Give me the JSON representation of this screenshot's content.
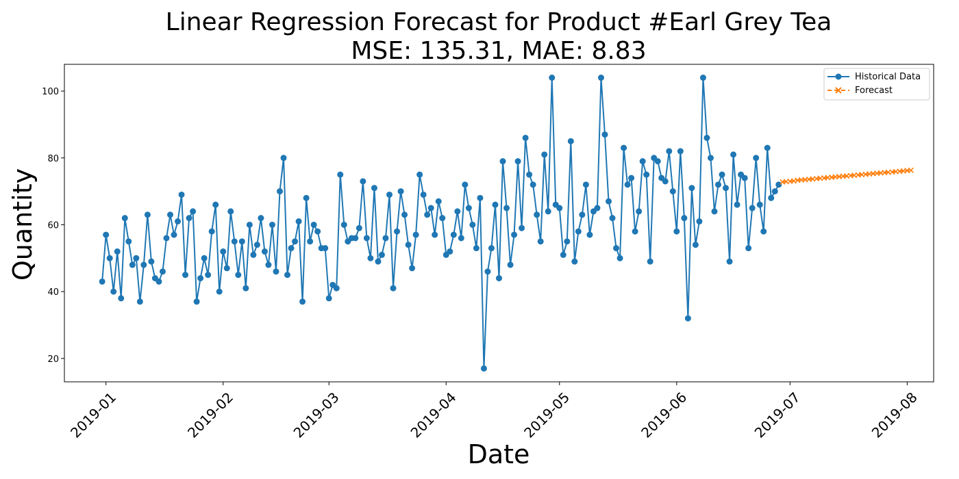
{
  "chart_data": {
    "type": "line",
    "title": "Linear Regression Forecast for Product #Earl Grey Tea",
    "subtitle": "MSE: 135.31, MAE: 8.83",
    "xlabel": "Date",
    "ylabel": "Quantity",
    "xlim": [
      "2018-12-21",
      "2019-08-08"
    ],
    "ylim": [
      13,
      108
    ],
    "x_ticks": [
      "2019-01",
      "2019-02",
      "2019-03",
      "2019-04",
      "2019-05",
      "2019-06",
      "2019-07",
      "2019-08"
    ],
    "y_ticks": [
      20,
      40,
      60,
      80,
      100
    ],
    "grid": false,
    "legend_position": "top-right",
    "series": [
      {
        "name": "Historical Data",
        "color": "#1f77b4",
        "marker": "circle",
        "start_date": "2018-12-31",
        "interval_days": 1,
        "values": [
          43,
          57,
          50,
          40,
          52,
          38,
          62,
          55,
          48,
          50,
          37,
          48,
          63,
          49,
          44,
          43,
          46,
          56,
          63,
          57,
          61,
          69,
          45,
          62,
          64,
          37,
          44,
          50,
          45,
          58,
          66,
          40,
          52,
          47,
          64,
          55,
          45,
          55,
          41,
          60,
          51,
          54,
          62,
          52,
          48,
          60,
          46,
          70,
          80,
          45,
          53,
          55,
          61,
          37,
          68,
          55,
          60,
          58,
          53,
          53,
          38,
          42,
          41,
          75,
          60,
          55,
          56,
          56,
          59,
          73,
          56,
          50,
          71,
          49,
          51,
          56,
          69,
          41,
          58,
          70,
          63,
          54,
          47,
          57,
          75,
          69,
          63,
          65,
          57,
          67,
          62,
          51,
          52,
          57,
          64,
          56,
          72,
          65,
          60,
          53,
          68,
          17,
          46,
          53,
          66,
          44,
          79,
          65,
          48,
          57,
          79,
          59,
          86,
          75,
          72,
          63,
          55,
          81,
          64,
          104,
          66,
          65,
          51,
          55,
          85,
          49,
          58,
          63,
          72,
          57,
          64,
          65,
          104,
          87,
          67,
          62,
          53,
          50,
          83,
          72,
          74,
          58,
          64,
          79,
          75,
          49,
          80,
          79,
          74,
          73,
          82,
          70,
          58,
          82,
          62,
          32,
          71,
          54,
          61,
          104,
          86,
          80,
          64,
          72,
          75,
          71,
          49,
          81,
          66,
          75,
          74,
          53,
          65,
          80,
          66,
          58,
          83,
          68,
          70,
          72
        ]
      },
      {
        "name": "Forecast",
        "color": "#ff7f0e",
        "marker": "x",
        "line_style": "dashed",
        "start_date": "2019-06-29",
        "interval_days": 1,
        "values": [
          72.8,
          72.9,
          73.0,
          73.1,
          73.3,
          73.4,
          73.5,
          73.6,
          73.7,
          73.8,
          73.9,
          74.0,
          74.1,
          74.2,
          74.3,
          74.4,
          74.5,
          74.6,
          74.7,
          74.8,
          74.9,
          75.0,
          75.1,
          75.2,
          75.3,
          75.4,
          75.5,
          75.6,
          75.7,
          75.8,
          75.9,
          76.0,
          76.1,
          76.2,
          76.3
        ]
      }
    ]
  }
}
